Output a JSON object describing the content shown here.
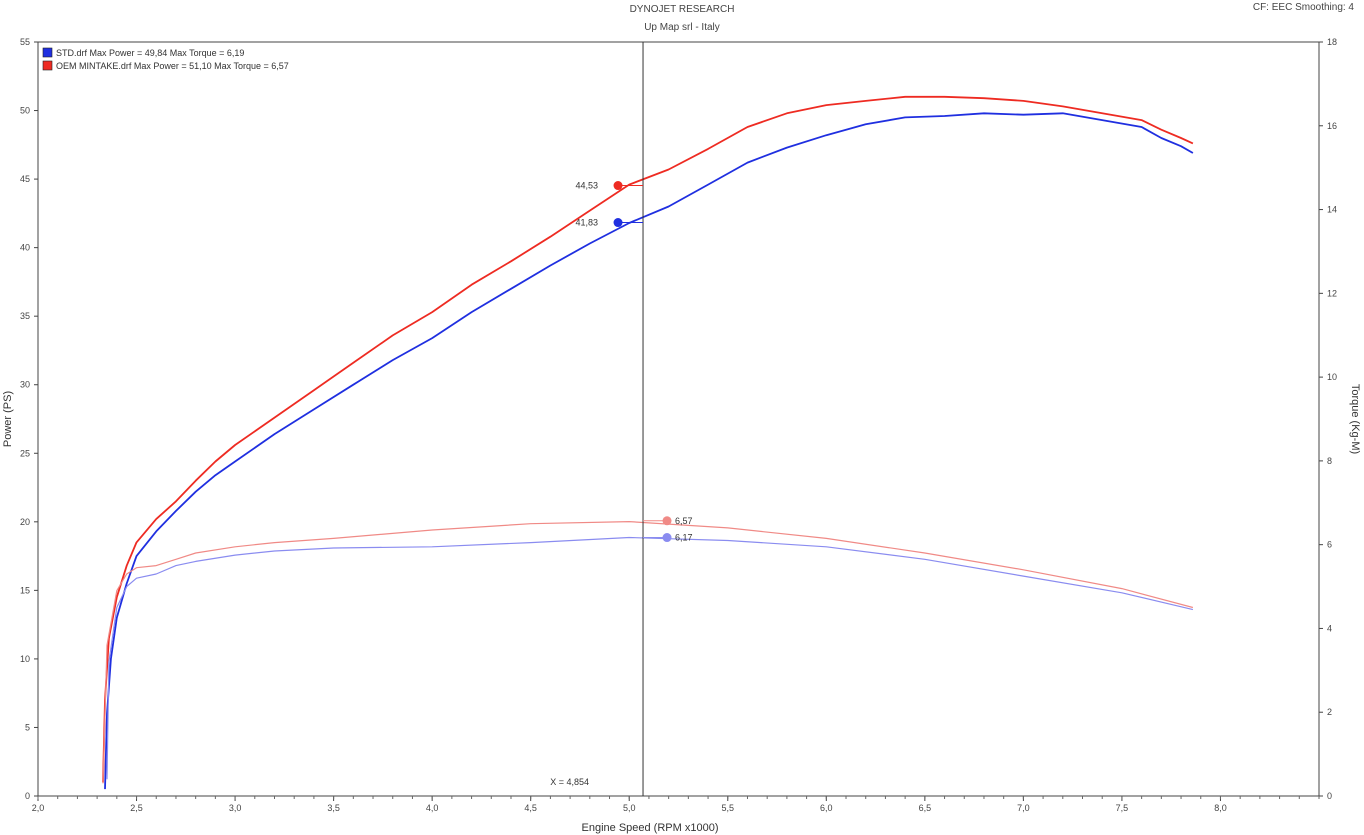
{
  "header": {
    "title": "DYNOJET RESEARCH",
    "subtitle": "Up Map srl - Italy",
    "correction": "CF: EEC  Smoothing: 4"
  },
  "chart_data": {
    "type": "line",
    "xlabel": "Engine Speed (RPM x1000)",
    "ylabel": "Power (PS)",
    "y2label": "Torque (Kg-M)",
    "xlim": [
      2.0,
      8.5
    ],
    "ylim": [
      0,
      55
    ],
    "y2lim": [
      0,
      18
    ],
    "xticks": [
      "2,0",
      "2,5",
      "3,0",
      "3,5",
      "4,0",
      "4,5",
      "5,0",
      "5,5",
      "6,0",
      "6,5",
      "7,0",
      "7,5",
      "8,0"
    ],
    "yticks": [
      "0",
      "5",
      "10",
      "15",
      "20",
      "25",
      "30",
      "35",
      "40",
      "45",
      "50",
      "55"
    ],
    "y2ticks": [
      "0",
      "2",
      "4",
      "6",
      "8",
      "10",
      "12",
      "14",
      "16",
      "18"
    ],
    "legend": [
      {
        "text": "STD.drf Max Power = 49,84     Max Torque = 6,19",
        "color": "#1f2fe0"
      },
      {
        "text": "OEM MINTAKE.drf Max Power = 51,10     Max Torque = 6,57",
        "color": "#ee2b22"
      }
    ],
    "cursor": {
      "x": 5.07,
      "readout": "X = 4,854",
      "power_labels": [
        {
          "text": "44,53",
          "value": 44.53,
          "color": "#ee2b22"
        },
        {
          "text": "41,83",
          "value": 41.83,
          "color": "#1f2fe0"
        }
      ],
      "torque_labels": [
        {
          "text": "6,57",
          "value": 6.57,
          "color": "#f08a86"
        },
        {
          "text": "6,17",
          "value": 6.17,
          "color": "#8a8cf0"
        }
      ]
    },
    "series": [
      {
        "name": "STD.drf",
        "measure": "power",
        "axis": "left",
        "color": "#1f2fe0",
        "x": [
          2.34,
          2.35,
          2.37,
          2.4,
          2.45,
          2.5,
          2.6,
          2.7,
          2.8,
          2.9,
          3.0,
          3.2,
          3.4,
          3.6,
          3.8,
          4.0,
          4.2,
          4.4,
          4.6,
          4.8,
          5.0,
          5.2,
          5.4,
          5.6,
          5.8,
          6.0,
          6.2,
          6.4,
          6.6,
          6.8,
          7.0,
          7.2,
          7.4,
          7.6,
          7.7,
          7.8,
          7.86
        ],
        "y": [
          0.5,
          6.0,
          10.0,
          13.0,
          15.5,
          17.5,
          19.3,
          20.8,
          22.2,
          23.4,
          24.4,
          26.4,
          28.2,
          30.0,
          31.8,
          33.4,
          35.3,
          37.0,
          38.7,
          40.3,
          41.8,
          43.0,
          44.6,
          46.2,
          47.3,
          48.2,
          49.0,
          49.5,
          49.6,
          49.8,
          49.7,
          49.8,
          49.3,
          48.8,
          48.0,
          47.4,
          46.9
        ]
      },
      {
        "name": "OEM MINTAKE.drf",
        "measure": "power",
        "axis": "left",
        "color": "#ee2b22",
        "x": [
          2.33,
          2.34,
          2.36,
          2.4,
          2.45,
          2.5,
          2.6,
          2.7,
          2.8,
          2.9,
          3.0,
          3.2,
          3.4,
          3.6,
          3.8,
          4.0,
          4.2,
          4.4,
          4.6,
          4.8,
          5.0,
          5.2,
          5.4,
          5.6,
          5.8,
          6.0,
          6.2,
          6.4,
          6.6,
          6.8,
          7.0,
          7.2,
          7.4,
          7.6,
          7.7,
          7.8,
          7.86
        ],
        "y": [
          1.0,
          7.0,
          11.5,
          14.5,
          16.8,
          18.5,
          20.2,
          21.5,
          23.0,
          24.4,
          25.6,
          27.6,
          29.6,
          31.6,
          33.6,
          35.3,
          37.3,
          39.0,
          40.8,
          42.7,
          44.6,
          45.7,
          47.2,
          48.8,
          49.8,
          50.4,
          50.7,
          51.0,
          51.0,
          50.9,
          50.7,
          50.3,
          49.8,
          49.3,
          48.6,
          48.0,
          47.6
        ]
      },
      {
        "name": "STD.drf",
        "measure": "torque",
        "axis": "right",
        "color": "#8a8cf0",
        "x": [
          2.35,
          2.36,
          2.4,
          2.45,
          2.5,
          2.6,
          2.7,
          2.8,
          3.0,
          3.2,
          3.5,
          4.0,
          4.5,
          5.0,
          5.5,
          6.0,
          6.5,
          7.0,
          7.5,
          7.86
        ],
        "y": [
          0.4,
          3.2,
          4.5,
          5.0,
          5.2,
          5.3,
          5.5,
          5.6,
          5.75,
          5.85,
          5.92,
          5.95,
          6.05,
          6.17,
          6.1,
          5.95,
          5.65,
          5.25,
          4.85,
          4.45
        ]
      },
      {
        "name": "OEM MINTAKE.drf",
        "measure": "torque",
        "axis": "right",
        "color": "#f08a86",
        "x": [
          2.33,
          2.35,
          2.4,
          2.45,
          2.5,
          2.6,
          2.7,
          2.8,
          3.0,
          3.2,
          3.5,
          4.0,
          4.5,
          5.0,
          5.5,
          6.0,
          6.5,
          7.0,
          7.5,
          7.86
        ],
        "y": [
          0.3,
          3.6,
          4.9,
          5.3,
          5.45,
          5.5,
          5.65,
          5.8,
          5.95,
          6.05,
          6.15,
          6.35,
          6.5,
          6.55,
          6.4,
          6.15,
          5.8,
          5.4,
          4.95,
          4.5
        ]
      }
    ]
  }
}
